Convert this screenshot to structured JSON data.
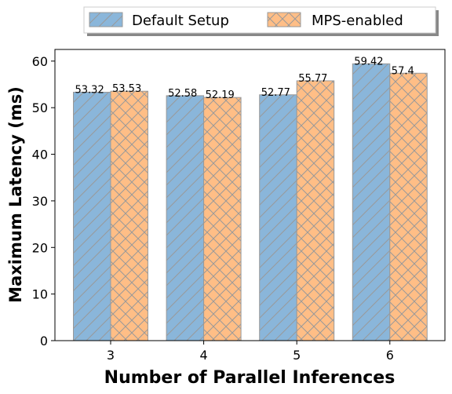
{
  "chart_data": {
    "type": "bar",
    "categories": [
      "3",
      "4",
      "5",
      "6"
    ],
    "series": [
      {
        "name": "Default Setup",
        "values": [
          53.32,
          52.58,
          52.77,
          59.42
        ],
        "value_labels": [
          "53.32",
          "52.58",
          "52.77",
          "59.42"
        ],
        "color": "#8ab6da",
        "hatch": "diagonal"
      },
      {
        "name": "MPS-enabled",
        "values": [
          53.53,
          52.19,
          55.77,
          57.4
        ],
        "value_labels": [
          "53.53",
          "52.19",
          "55.77",
          "57.4"
        ],
        "color": "#ffbe86",
        "hatch": "crosshatch"
      }
    ],
    "xlabel": "Number of Parallel Inferences",
    "ylabel": "Maximum Latency (ms)",
    "ylim": [
      0,
      62.5
    ],
    "yticks": [
      0,
      10,
      20,
      30,
      40,
      50,
      60
    ],
    "grid": false,
    "legend": {
      "placement": "top-center-outside",
      "columns": 2
    },
    "colors": {
      "edge": "#999999",
      "hatch_line": "#999999"
    }
  }
}
